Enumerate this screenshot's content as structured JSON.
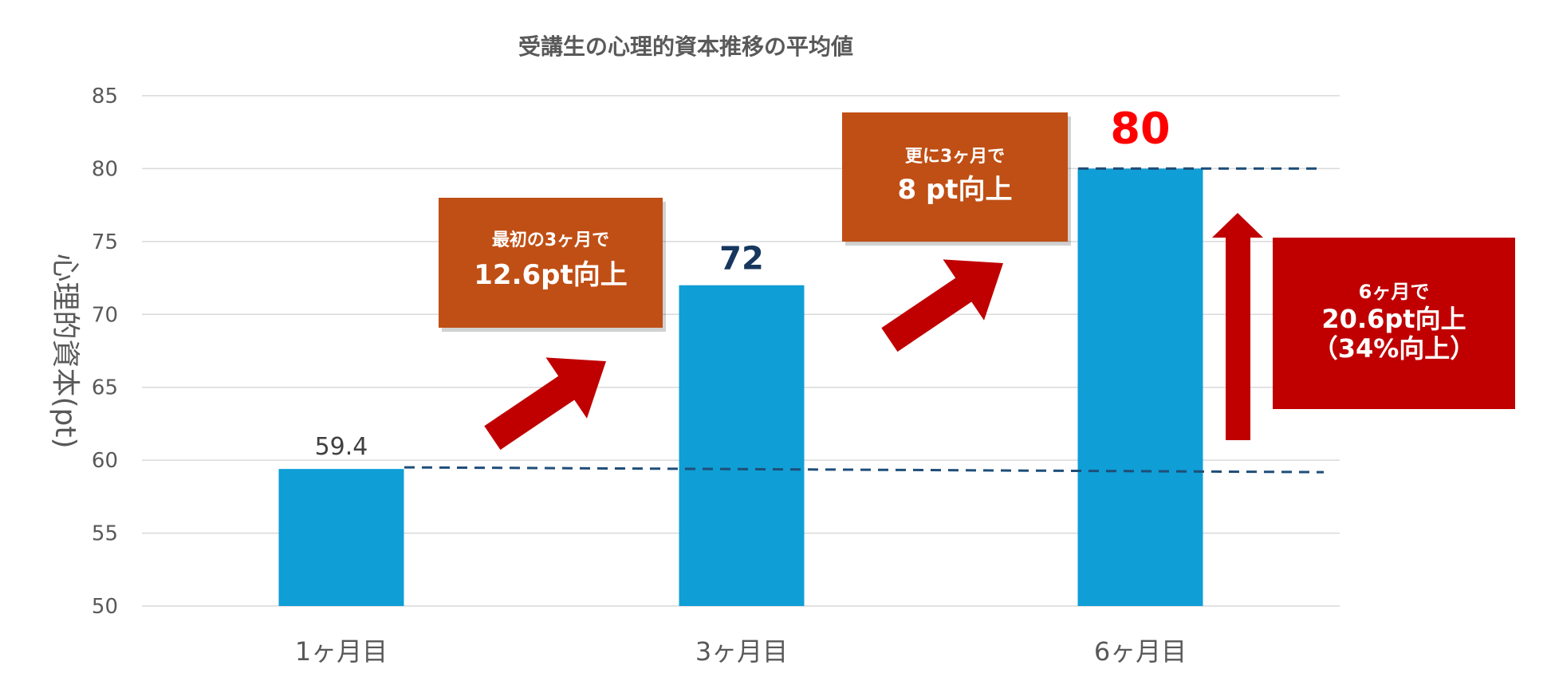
{
  "chart_data": {
    "type": "bar",
    "title": "受講生の心理的資本推移の平均値",
    "ylabel": "心理的資本(pt)",
    "xlabel": "",
    "categories": [
      "1ヶ月目",
      "3ヶ月目",
      "6ヶ月目"
    ],
    "values": [
      59.4,
      72,
      80
    ],
    "value_labels": [
      "59.4",
      "72",
      "80"
    ],
    "ylim": [
      50,
      85
    ],
    "yticks": [
      50,
      55,
      60,
      65,
      70,
      75,
      80,
      85
    ],
    "ytick_labels": [
      "50",
      "55",
      "60",
      "65",
      "70",
      "75",
      "80",
      "85"
    ],
    "grid": true,
    "legend": "none",
    "reference_lines": [
      {
        "value": 59.4,
        "style": "dashed"
      },
      {
        "value": 80,
        "style": "dashed"
      }
    ]
  },
  "callouts": [
    {
      "lines": [
        "最初の3ヶ月で",
        "12.6pt向上"
      ]
    },
    {
      "lines": [
        "更に3ヶ月で",
        "8 pt向上"
      ]
    },
    {
      "lines": [
        "6ヶ月で",
        "20.6pt向上",
        "（34%向上）"
      ]
    }
  ],
  "colors": {
    "bar": "#0f9ed5",
    "grid": "#d9d9d9",
    "dashed_line": "#1f4e79",
    "callout_orange": "#c04f15",
    "callout_red": "#c00000",
    "arrow": "#c00000",
    "label_dark": "#17375e",
    "label_red": "#ff0000",
    "label_default": "#404040",
    "text_gray": "#595959"
  }
}
